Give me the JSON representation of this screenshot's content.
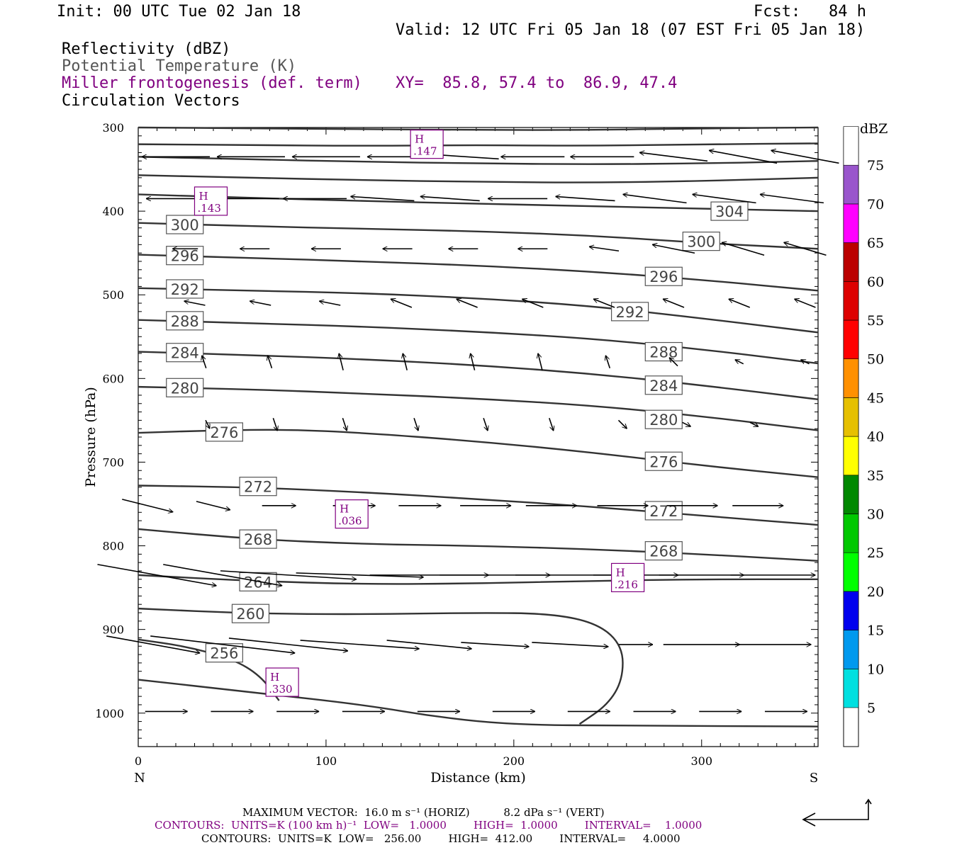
{
  "header": {
    "init": "Init: 00 UTC Tue 02 Jan 18",
    "fcst": "Fcst:   84 h",
    "valid": "Valid: 12 UTC Fri 05 Jan 18 (07 EST Fri 05 Jan 18)",
    "fields": [
      {
        "text": "Reflectivity (dBZ)",
        "color": "#000000"
      },
      {
        "text": "Potential Temperature (K)",
        "color": "#555555"
      },
      {
        "text": "Miller frontogenesis (def. term)",
        "color": "#800080"
      },
      {
        "text": "Circulation Vectors",
        "color": "#000000"
      }
    ],
    "xy": "XY=  85.8, 57.4 to  86.9, 47.4"
  },
  "chart_data": {
    "type": "line",
    "xlabel": "Distance (km)",
    "ylabel": "Pressure (hPa)",
    "xlim": [
      0,
      362
    ],
    "ylim": [
      1040,
      300
    ],
    "xticks": [
      0,
      100,
      200,
      300
    ],
    "yticks": [
      300,
      400,
      500,
      600,
      700,
      800,
      900,
      1000
    ],
    "x_end_labels": {
      "left": "N",
      "right": "S"
    },
    "theta_contours": [
      {
        "value": 304,
        "x": [
          0,
          60,
          120,
          180,
          240,
          300,
          362
        ],
        "y": [
          380,
          384,
          388,
          391,
          394,
          397,
          400
        ],
        "label_at": [
          305,
          400
        ]
      },
      {
        "value": 300,
        "x": [
          0,
          60,
          120,
          180,
          240,
          300,
          362
        ],
        "y": [
          414,
          418,
          421,
          424,
          429,
          438,
          445
        ],
        "label_at": [
          15,
          416
        ],
        "label2_at": [
          290,
          436
        ]
      },
      {
        "value": 296,
        "x": [
          0,
          60,
          120,
          180,
          240,
          300,
          362
        ],
        "y": [
          452,
          456,
          460,
          465,
          472,
          482,
          495
        ],
        "label_at": [
          15,
          453
        ],
        "label2_at": [
          270,
          478
        ]
      },
      {
        "value": 292,
        "x": [
          0,
          60,
          120,
          180,
          240,
          300,
          362
        ],
        "y": [
          492,
          495,
          498,
          504,
          513,
          528,
          545
        ],
        "label_at": [
          15,
          493
        ],
        "label2_at": [
          252,
          520
        ]
      },
      {
        "value": 288,
        "x": [
          0,
          60,
          120,
          180,
          240,
          300,
          362
        ],
        "y": [
          530,
          534,
          538,
          544,
          552,
          565,
          582
        ],
        "label_at": [
          15,
          531
        ],
        "label2_at": [
          270,
          568
        ]
      },
      {
        "value": 284,
        "x": [
          0,
          60,
          120,
          180,
          240,
          300,
          362
        ],
        "y": [
          568,
          572,
          577,
          584,
          594,
          608,
          625
        ],
        "label_at": [
          15,
          569
        ],
        "label2_at": [
          270,
          608
        ]
      },
      {
        "value": 280,
        "x": [
          0,
          60,
          120,
          180,
          240,
          300,
          362
        ],
        "y": [
          610,
          613,
          618,
          624,
          632,
          645,
          662
        ],
        "label_at": [
          15,
          611
        ],
        "label2_at": [
          270,
          649
        ]
      },
      {
        "value": 276,
        "x": [
          0,
          40,
          80,
          120,
          180,
          240,
          300,
          362
        ],
        "y": [
          665,
          662,
          661,
          665,
          675,
          688,
          704,
          718
        ],
        "label_at": [
          36,
          664
        ],
        "label2_at": [
          270,
          699
        ]
      },
      {
        "value": 272,
        "x": [
          0,
          60,
          120,
          180,
          240,
          300,
          362
        ],
        "y": [
          728,
          730,
          736,
          744,
          753,
          764,
          775
        ],
        "label_at": [
          54,
          729
        ],
        "label2_at": [
          270,
          758
        ]
      },
      {
        "value": 268,
        "x": [
          0,
          60,
          120,
          180,
          240,
          300,
          362
        ],
        "y": [
          780,
          792,
          798,
          800,
          804,
          810,
          818
        ],
        "label_at": [
          54,
          792
        ],
        "label2_at": [
          270,
          806
        ]
      },
      {
        "value": 264,
        "x": [
          0,
          60,
          120,
          180,
          240,
          300,
          362
        ],
        "y": [
          835,
          842,
          846,
          845,
          842,
          840,
          840
        ],
        "label_at": [
          54,
          843
        ]
      },
      {
        "value": 260,
        "x": [
          0,
          60,
          120,
          180,
          220,
          245,
          258,
          258,
          250,
          235
        ],
        "y": [
          875,
          881,
          882,
          880,
          881,
          893,
          920,
          960,
          990,
          1013
        ],
        "label_at": [
          50,
          881
        ]
      },
      {
        "value": 256,
        "x": [
          0,
          25,
          50,
          65,
          75
        ],
        "y": [
          912,
          920,
          935,
          955,
          985
        ],
        "label_at": [
          36,
          928
        ]
      },
      {
        "value": null,
        "x": [
          0,
          60,
          120,
          160,
          200,
          260,
          362
        ],
        "y": [
          960,
          975,
          990,
          1005,
          1014,
          1015,
          1016
        ]
      },
      {
        "value": null,
        "x": [
          0,
          60,
          120,
          180,
          240,
          300,
          362
        ],
        "y": [
          320,
          321,
          322,
          321,
          322,
          320,
          319
        ]
      },
      {
        "value": null,
        "x": [
          0,
          60,
          120,
          180,
          240,
          300,
          362
        ],
        "y": [
          300,
          301,
          302,
          303,
          303,
          301,
          300
        ]
      },
      {
        "value": null,
        "x": [
          0,
          60,
          120,
          180,
          240,
          300,
          362
        ],
        "y": [
          335,
          338,
          341,
          343,
          344,
          343,
          340
        ]
      },
      {
        "value": null,
        "x": [
          0,
          60,
          120,
          180,
          240,
          300,
          362
        ],
        "y": [
          357,
          360,
          363,
          365,
          366,
          364,
          360
        ]
      }
    ],
    "frontogenesis_maxima": [
      {
        "label": "H",
        "value": ".147",
        "x": 145,
        "y": 320
      },
      {
        "label": "H",
        "value": ".143",
        "x": 30,
        "y": 388
      },
      {
        "label": "H",
        "value": ".036",
        "x": 105,
        "y": 762
      },
      {
        "label": "H",
        "value": ".216",
        "x": 252,
        "y": 838
      },
      {
        "label": "H",
        "value": ".330",
        "x": 68,
        "y": 963
      }
    ],
    "vectors": [
      {
        "y": 335,
        "x": [
          20,
          60,
          100,
          140,
          175,
          210,
          247,
          285,
          322,
          355
        ],
        "u": [
          -16,
          -16,
          -16,
          -16,
          -15,
          -15,
          -15,
          -16,
          -16,
          -16
        ],
        "w": [
          0,
          0,
          0,
          0,
          -1,
          0,
          0,
          -2,
          -3,
          -3
        ]
      },
      {
        "y": 385,
        "x": [
          20,
          58,
          94,
          130,
          166,
          202,
          238,
          275,
          312,
          348
        ],
        "u": [
          -14,
          -15,
          -15,
          -15,
          -14,
          -14,
          -14,
          -15,
          -15,
          -15
        ],
        "w": [
          0,
          0,
          0,
          -1,
          -1,
          0,
          -1,
          -2,
          -2,
          -2
        ]
      },
      {
        "y": 445,
        "x": [
          25,
          62,
          100,
          138,
          173,
          210,
          248,
          285,
          322,
          355
        ],
        "u": [
          -6,
          -7,
          -7,
          -7,
          -7,
          -7,
          -7,
          -10,
          -10,
          -10
        ],
        "w": [
          0,
          0,
          0,
          0,
          0,
          0,
          -1,
          -2,
          -3,
          -3
        ]
      },
      {
        "y": 510,
        "x": [
          30,
          65,
          102,
          140,
          175,
          210,
          248,
          285,
          320,
          355
        ],
        "u": [
          -5,
          -5,
          -5,
          -5,
          -5,
          -5,
          -5,
          -5,
          -5,
          -5
        ],
        "w": [
          -1,
          -1,
          -1,
          -2,
          -2,
          -2,
          -2,
          -2,
          -2,
          -2
        ]
      },
      {
        "y": 580,
        "x": [
          35,
          70,
          108,
          142,
          178,
          214,
          250,
          285,
          320,
          355
        ],
        "u": [
          -1,
          -1,
          -1,
          -1,
          -1,
          -1,
          -1,
          -2,
          -2,
          -2
        ],
        "w": [
          -3,
          -3,
          -4,
          -4,
          -4,
          -4,
          -3,
          -2,
          -1,
          -1
        ]
      },
      {
        "y": 655,
        "x": [
          37,
          73,
          110,
          148,
          185,
          220,
          258,
          292,
          328
        ],
        "u": [
          1,
          1,
          1,
          1,
          1,
          1,
          2,
          2,
          2
        ],
        "w": [
          2,
          3,
          3,
          3,
          3,
          3,
          2,
          1,
          1
        ]
      },
      {
        "y": 752,
        "x": [
          5,
          40,
          75,
          115,
          150,
          185,
          220,
          258,
          295,
          330
        ],
        "u": [
          12,
          8,
          8,
          10,
          10,
          12,
          12,
          12,
          12,
          12
        ],
        "w": [
          3,
          2,
          0,
          0,
          0,
          0,
          0,
          0,
          0,
          0
        ]
      },
      {
        "y": 835,
        "x": [
          10,
          45,
          80,
          118,
          155,
          190,
          228,
          265,
          300,
          338
        ],
        "u": [
          28,
          28,
          32,
          30,
          28,
          26,
          24,
          20,
          20,
          20
        ],
        "w": [
          5,
          5,
          2,
          1,
          0,
          0,
          0,
          0,
          0,
          0
        ]
      },
      {
        "y": 918,
        "x": [
          8,
          45,
          80,
          118,
          155,
          190,
          230,
          265,
          300,
          338
        ],
        "u": [
          22,
          34,
          28,
          28,
          20,
          16,
          18,
          8,
          18,
          18
        ],
        "w": [
          4,
          4,
          3,
          2,
          2,
          1,
          1,
          0,
          0,
          0
        ]
      },
      {
        "y": 998,
        "x": [
          15,
          50,
          85,
          120,
          160,
          200,
          240,
          275,
          310,
          345
        ],
        "u": [
          10,
          10,
          10,
          10,
          10,
          10,
          10,
          10,
          10,
          10
        ],
        "w": [
          0,
          0,
          0,
          0,
          0,
          0,
          0,
          0,
          0,
          0
        ]
      }
    ],
    "colorbar": {
      "title": "dBZ",
      "levels": [
        "5",
        "10",
        "15",
        "20",
        "25",
        "30",
        "35",
        "40",
        "45",
        "50",
        "55",
        "60",
        "65",
        "70",
        "75"
      ],
      "colors": [
        "#00e0e0",
        "#0099ee",
        "#0000ee",
        "#00ff00",
        "#00c800",
        "#008800",
        "#ffff00",
        "#e6c000",
        "#ff9000",
        "#ff0000",
        "#dd0000",
        "#bb0000",
        "#ff00ff",
        "#9955cc",
        "#ffffff"
      ]
    },
    "grid": false
  },
  "footer": {
    "max_vector": "MAXIMUM VECTOR:  16.0 m s⁻¹ (HORIZ)          8.2 dPa s⁻¹ (VERT)",
    "contours_purple": "CONTOURS:  UNITS=K (100 km h)⁻¹  LOW=   1.0000        HIGH=  1.0000        INTERVAL=    1.0000",
    "contours_black": "CONTOURS:  UNITS=K  LOW=   256.00        HIGH=  412.00        INTERVAL=     4.0000"
  }
}
